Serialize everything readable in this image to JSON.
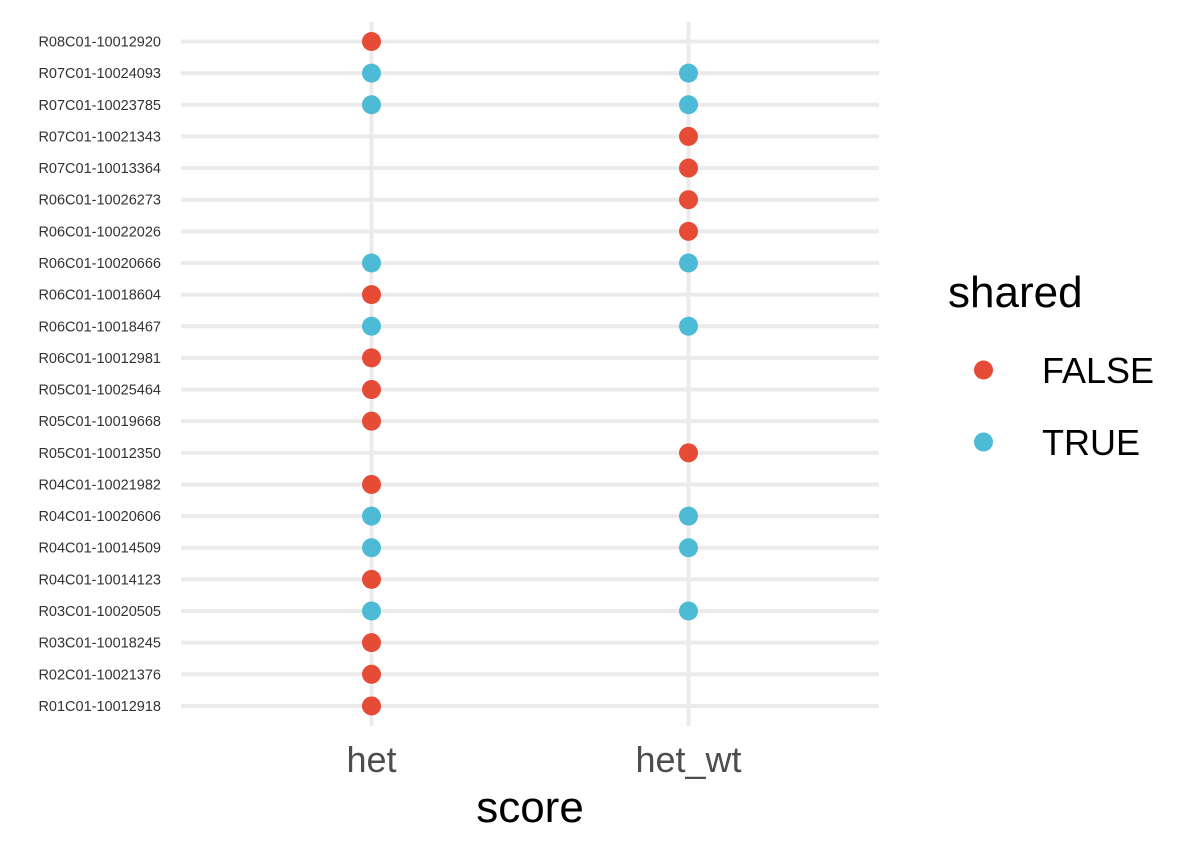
{
  "chart_data": {
    "type": "scatter",
    "xlabel": "score",
    "ylabel": "",
    "x_categories": [
      "het",
      "het_wt"
    ],
    "y_categories": [
      "R08C01-10012920",
      "R07C01-10024093",
      "R07C01-10023785",
      "R07C01-10021343",
      "R07C01-10013364",
      "R06C01-10026273",
      "R06C01-10022026",
      "R06C01-10020666",
      "R06C01-10018604",
      "R06C01-10018467",
      "R06C01-10012981",
      "R05C01-10025464",
      "R05C01-10019668",
      "R05C01-10012350",
      "R04C01-10021982",
      "R04C01-10020606",
      "R04C01-10014509",
      "R04C01-10014123",
      "R03C01-10020505",
      "R03C01-10018245",
      "R02C01-10021376",
      "R01C01-10012918"
    ],
    "legend": {
      "title": "shared",
      "placement": "right",
      "entries": [
        {
          "label": "FALSE",
          "color": "#e64b35"
        },
        {
          "label": "TRUE",
          "color": "#4dbbd5"
        }
      ]
    },
    "points": [
      {
        "x": "het",
        "y": "R08C01-10012920",
        "shared": "FALSE"
      },
      {
        "x": "het",
        "y": "R07C01-10024093",
        "shared": "TRUE"
      },
      {
        "x": "het_wt",
        "y": "R07C01-10024093",
        "shared": "TRUE"
      },
      {
        "x": "het",
        "y": "R07C01-10023785",
        "shared": "TRUE"
      },
      {
        "x": "het_wt",
        "y": "R07C01-10023785",
        "shared": "TRUE"
      },
      {
        "x": "het_wt",
        "y": "R07C01-10021343",
        "shared": "FALSE"
      },
      {
        "x": "het_wt",
        "y": "R07C01-10013364",
        "shared": "FALSE"
      },
      {
        "x": "het_wt",
        "y": "R06C01-10026273",
        "shared": "FALSE"
      },
      {
        "x": "het_wt",
        "y": "R06C01-10022026",
        "shared": "FALSE"
      },
      {
        "x": "het",
        "y": "R06C01-10020666",
        "shared": "TRUE"
      },
      {
        "x": "het_wt",
        "y": "R06C01-10020666",
        "shared": "TRUE"
      },
      {
        "x": "het",
        "y": "R06C01-10018604",
        "shared": "FALSE"
      },
      {
        "x": "het",
        "y": "R06C01-10018467",
        "shared": "TRUE"
      },
      {
        "x": "het_wt",
        "y": "R06C01-10018467",
        "shared": "TRUE"
      },
      {
        "x": "het",
        "y": "R06C01-10012981",
        "shared": "FALSE"
      },
      {
        "x": "het",
        "y": "R05C01-10025464",
        "shared": "FALSE"
      },
      {
        "x": "het",
        "y": "R05C01-10019668",
        "shared": "FALSE"
      },
      {
        "x": "het_wt",
        "y": "R05C01-10012350",
        "shared": "FALSE"
      },
      {
        "x": "het",
        "y": "R04C01-10021982",
        "shared": "FALSE"
      },
      {
        "x": "het",
        "y": "R04C01-10020606",
        "shared": "TRUE"
      },
      {
        "x": "het_wt",
        "y": "R04C01-10020606",
        "shared": "TRUE"
      },
      {
        "x": "het",
        "y": "R04C01-10014509",
        "shared": "TRUE"
      },
      {
        "x": "het_wt",
        "y": "R04C01-10014509",
        "shared": "TRUE"
      },
      {
        "x": "het",
        "y": "R04C01-10014123",
        "shared": "FALSE"
      },
      {
        "x": "het",
        "y": "R03C01-10020505",
        "shared": "TRUE"
      },
      {
        "x": "het_wt",
        "y": "R03C01-10020505",
        "shared": "TRUE"
      },
      {
        "x": "het",
        "y": "R03C01-10018245",
        "shared": "FALSE"
      },
      {
        "x": "het",
        "y": "R02C01-10021376",
        "shared": "FALSE"
      },
      {
        "x": "het",
        "y": "R01C01-10012918",
        "shared": "FALSE"
      }
    ],
    "grid": true,
    "background": "#ffffff",
    "grid_color": "#ebebeb"
  }
}
